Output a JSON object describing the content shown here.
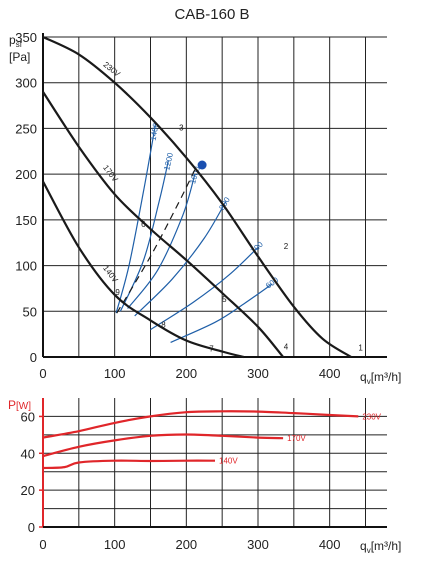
{
  "title": "CAB-160 B",
  "colors": {
    "black": "#1a1a1a",
    "blue": "#1f5fa8",
    "red": "#e0262a",
    "point": "#1a4fb0"
  },
  "chart_data": [
    {
      "type": "line",
      "title": "CAB-160 B",
      "ylabel": "p",
      "ylabel_sub": "sf",
      "ylabel_unit": "[Pa]",
      "xlabel": "q",
      "xlabel_sub": "v",
      "xlabel_unit": "[m³/h]",
      "xlim": [
        0,
        480
      ],
      "ylim": [
        0,
        350
      ],
      "x_ticks": [
        0,
        100,
        200,
        300,
        400
      ],
      "y_ticks": [
        0,
        50,
        100,
        150,
        200,
        250,
        300,
        350
      ],
      "grid": true,
      "fan_curves": [
        {
          "name": "230V",
          "points": [
            [
              0,
              350
            ],
            [
              50,
              331
            ],
            [
              100,
              300
            ],
            [
              150,
              262
            ],
            [
              200,
              218
            ],
            [
              250,
              168
            ],
            [
              300,
              110
            ],
            [
              350,
              55
            ],
            [
              390,
              20
            ],
            [
              430,
              0
            ]
          ]
        },
        {
          "name": "170V",
          "points": [
            [
              0,
              290
            ],
            [
              50,
              230
            ],
            [
              100,
              178
            ],
            [
              150,
              140
            ],
            [
              200,
              106
            ],
            [
              250,
              70
            ],
            [
              300,
              33
            ],
            [
              335,
              0
            ]
          ]
        },
        {
          "name": "140V",
          "points": [
            [
              0,
              192
            ],
            [
              50,
              120
            ],
            [
              100,
              68
            ],
            [
              150,
              40
            ],
            [
              200,
              18
            ],
            [
              250,
              6
            ],
            [
              280,
              0
            ]
          ]
        }
      ],
      "system_curves": [
        {
          "name": "1400",
          "points": [
            [
              102,
              48
            ],
            [
              120,
              100
            ],
            [
              140,
              180
            ],
            [
              157,
              255
            ]
          ]
        },
        {
          "name": "1200",
          "points": [
            [
              108,
              50
            ],
            [
              140,
              105
            ],
            [
              162,
              170
            ],
            [
              175,
              215
            ]
          ]
        },
        {
          "name": "1000",
          "points": [
            [
              118,
              53
            ],
            [
              160,
              95
            ],
            [
              195,
              155
            ],
            [
              212,
              200
            ]
          ]
        },
        {
          "name": "800",
          "points": [
            [
              128,
              45
            ],
            [
              180,
              85
            ],
            [
              225,
              130
            ],
            [
              255,
              170
            ]
          ]
        },
        {
          "name": "700",
          "points": [
            [
              150,
              30
            ],
            [
              210,
              60
            ],
            [
              260,
              90
            ],
            [
              300,
              120
            ]
          ]
        },
        {
          "name": "600",
          "points": [
            [
              178,
              16
            ],
            [
              240,
              38
            ],
            [
              280,
              58
            ],
            [
              320,
              80
            ]
          ]
        }
      ],
      "dashed_line": {
        "points": [
          [
            103,
            48
          ],
          [
            150,
            110
          ],
          [
            190,
            170
          ],
          [
            212,
            205
          ]
        ]
      },
      "point_labels": [
        {
          "text": "1",
          "x": 440,
          "y": 7
        },
        {
          "text": "2",
          "x": 336,
          "y": 118
        },
        {
          "text": "3",
          "x": 190,
          "y": 248
        },
        {
          "text": "4",
          "x": 336,
          "y": 8
        },
        {
          "text": "5",
          "x": 250,
          "y": 60
        },
        {
          "text": "6",
          "x": 137,
          "y": 142
        },
        {
          "text": "7",
          "x": 232,
          "y": 6
        },
        {
          "text": "8",
          "x": 165,
          "y": 32
        },
        {
          "text": "9",
          "x": 101,
          "y": 68
        }
      ],
      "operating_point": {
        "x": 222,
        "y": 210
      }
    },
    {
      "type": "line",
      "ylabel": "P",
      "ylabel_unit": "[W]",
      "xlabel": "q",
      "xlabel_sub": "v",
      "xlabel_unit": "[m³/h]",
      "xlim": [
        0,
        480
      ],
      "ylim": [
        0,
        70
      ],
      "x_ticks": [
        0,
        100,
        200,
        300,
        400
      ],
      "y_ticks": [
        0,
        20,
        40,
        60
      ],
      "grid": true,
      "series": [
        {
          "name": "230V",
          "points": [
            [
              0,
              48.5
            ],
            [
              50,
              52
            ],
            [
              100,
              56.5
            ],
            [
              150,
              60
            ],
            [
              200,
              62.3
            ],
            [
              250,
              62.8
            ],
            [
              300,
              62.6
            ],
            [
              350,
              61.8
            ],
            [
              400,
              60.8
            ],
            [
              440,
              60
            ]
          ]
        },
        {
          "name": "170V",
          "points": [
            [
              0,
              38.5
            ],
            [
              50,
              43.5
            ],
            [
              100,
              47
            ],
            [
              150,
              49.5
            ],
            [
              200,
              50.2
            ],
            [
              250,
              49.5
            ],
            [
              300,
              48.5
            ],
            [
              335,
              48.2
            ]
          ]
        },
        {
          "name": "140V",
          "points": [
            [
              0,
              32
            ],
            [
              30,
              32.5
            ],
            [
              50,
              35
            ],
            [
              100,
              36
            ],
            [
              150,
              35.8
            ],
            [
              200,
              36
            ],
            [
              240,
              36
            ]
          ]
        }
      ]
    }
  ]
}
